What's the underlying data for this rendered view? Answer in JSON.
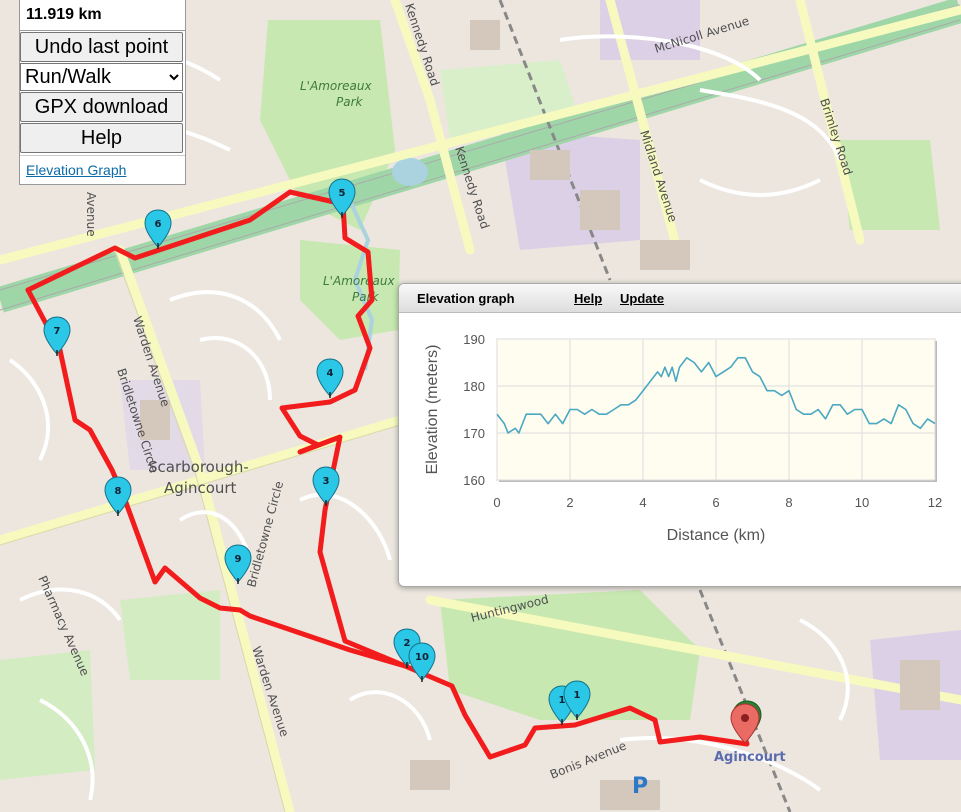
{
  "controls": {
    "distance": "11.919 km",
    "undo_label": "Undo last point",
    "mode_options": [
      "Run/Walk"
    ],
    "mode_selected": "Run/Walk",
    "gpx_label": "GPX download",
    "help_label": "Help",
    "elevation_link": "Elevation Graph"
  },
  "map": {
    "street_labels": [
      "Kennedy Road",
      "Kennedy Road",
      "McNicoll Avenue",
      "Midland Avenue",
      "Brimley Road",
      "Warden Avenue",
      "Warden Avenue",
      "Bridletowne Circle",
      "Bridletowne Circle",
      "Pharmacy Avenue",
      "Huntingwood",
      "Bonis Avenue",
      "Avenue"
    ],
    "area_labels": [
      "L'Amoreaux",
      "Park",
      "L'Amoreaux",
      "Park",
      "Scarborough-",
      "Agincourt"
    ],
    "station_label": "Agincourt",
    "parking_label": "P",
    "marker_labels": [
      "1",
      "1",
      "2",
      "3",
      "4",
      "5",
      "6",
      "7",
      "8",
      "9",
      "10"
    ],
    "route_color": "#f21c1c",
    "marker_color": "#2ac7e6",
    "end_marker_color": "#ea6b63"
  },
  "elevation": {
    "title": "Elevation graph",
    "help": "Help",
    "update": "Update"
  },
  "chart_data": {
    "type": "line",
    "xlabel": "Distance (km)",
    "ylabel": "Elevation (meters)",
    "xlim": [
      0,
      12
    ],
    "ylim": [
      160,
      190
    ],
    "xticks": [
      0,
      2,
      4,
      6,
      8,
      10,
      12
    ],
    "yticks": [
      160,
      170,
      180,
      190
    ],
    "grid": true,
    "line_color": "#4aa8c2",
    "plot_bg": "#fffcf0",
    "x": [
      0.0,
      0.2,
      0.3,
      0.5,
      0.6,
      0.8,
      1.0,
      1.2,
      1.4,
      1.6,
      1.8,
      2.0,
      2.2,
      2.4,
      2.6,
      2.8,
      3.0,
      3.2,
      3.4,
      3.6,
      3.8,
      4.0,
      4.2,
      4.4,
      4.5,
      4.6,
      4.7,
      4.8,
      4.9,
      5.0,
      5.2,
      5.4,
      5.6,
      5.8,
      6.0,
      6.2,
      6.4,
      6.6,
      6.8,
      7.0,
      7.2,
      7.4,
      7.6,
      7.8,
      8.0,
      8.2,
      8.4,
      8.6,
      8.8,
      9.0,
      9.2,
      9.4,
      9.6,
      9.8,
      10.0,
      10.2,
      10.4,
      10.6,
      10.8,
      11.0,
      11.2,
      11.4,
      11.6,
      11.8,
      12.0
    ],
    "y": [
      174,
      172,
      170,
      171,
      170,
      174,
      174,
      174,
      172,
      174,
      172,
      175,
      175,
      174,
      175,
      174,
      174,
      175,
      176,
      176,
      177,
      179,
      181,
      183,
      182,
      184,
      182,
      184,
      181,
      184,
      186,
      185,
      183,
      185,
      182,
      183,
      184,
      186,
      186,
      183,
      182,
      179,
      179,
      178,
      179,
      175,
      174,
      174,
      175,
      173,
      176,
      176,
      174,
      175,
      175,
      172,
      172,
      173,
      172,
      176,
      175,
      172,
      171,
      173,
      172
    ]
  }
}
